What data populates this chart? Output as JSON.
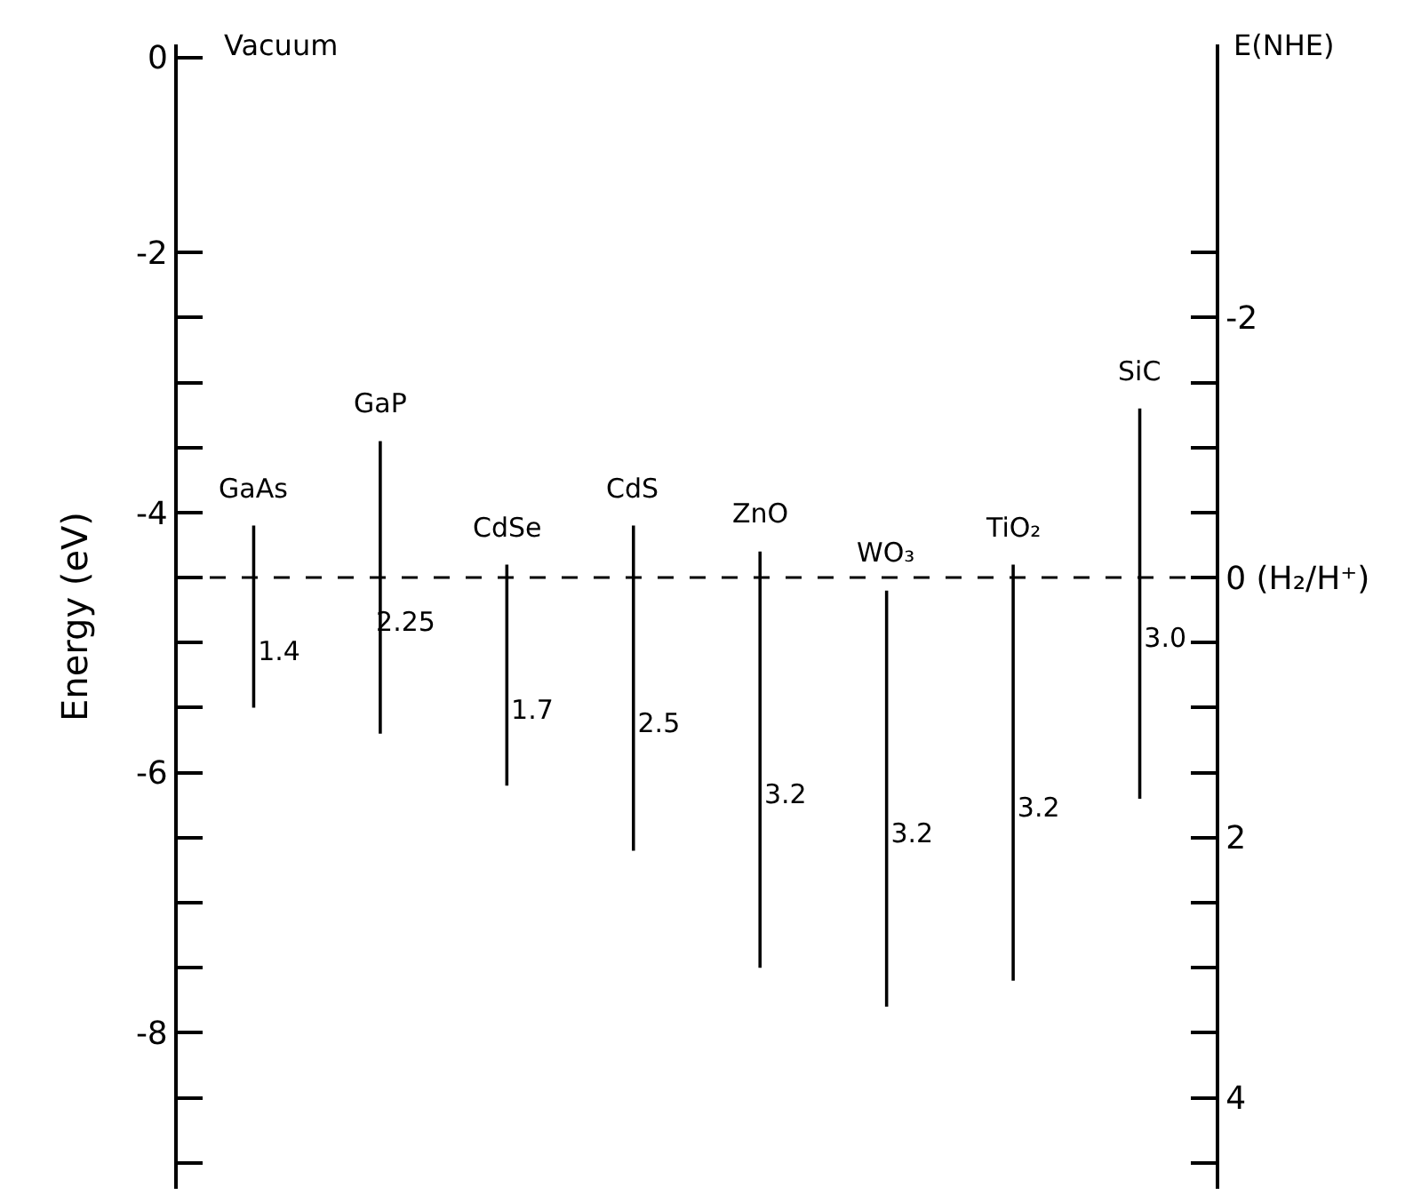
{
  "chart_data": {
    "type": "bar",
    "ylabel": "Energy (eV)",
    "y2label": "E(NHE)",
    "annotations": [
      "Vacuum"
    ],
    "categories": [
      "GaAs",
      "GaP",
      "CdSe",
      "CdS",
      "ZnO",
      "WO₃",
      "TiO₂",
      "SiC"
    ],
    "base": [
      -5.5,
      -5.7,
      -6.1,
      -6.6,
      -7.5,
      -7.8,
      -7.6,
      -6.2
    ],
    "values": [
      1.4,
      2.25,
      1.7,
      2.5,
      3.2,
      3.2,
      3.2,
      3.0
    ],
    "value_labels": [
      "1.4",
      "2.25",
      "1.7",
      "2.5",
      "3.2",
      "3.2",
      "3.2",
      "3.0"
    ],
    "color": "#000000",
    "ylim": [
      -9.2,
      -0.4
    ],
    "yticks": [
      {
        "value": -0.5,
        "label": "0"
      },
      {
        "value": -2,
        "label": "-2"
      },
      {
        "value": -2.5,
        "label": null
      },
      {
        "value": -3,
        "label": null
      },
      {
        "value": -3.5,
        "label": null
      },
      {
        "value": -4,
        "label": "-4"
      },
      {
        "value": -4.5,
        "label": null
      },
      {
        "value": -5,
        "label": null
      },
      {
        "value": -5.5,
        "label": null
      },
      {
        "value": -6,
        "label": "-6"
      },
      {
        "value": -6.5,
        "label": null
      },
      {
        "value": -7,
        "label": null
      },
      {
        "value": -7.5,
        "label": null
      },
      {
        "value": -8,
        "label": "-8"
      },
      {
        "value": -8.5,
        "label": null
      },
      {
        "value": -9,
        "label": null
      }
    ],
    "y2lim": [
      4.7,
      -4.1
    ],
    "y2ticks": [
      {
        "value": -2.5,
        "label": null
      },
      -2,
      {
        "value": -1.5,
        "label": null
      },
      {
        "value": -1,
        "label": null
      },
      {
        "value": -0.5,
        "label": null
      },
      {
        "value": 0,
        "label": "0 (H₂/H⁺)"
      },
      {
        "value": 0.5,
        "label": null
      },
      {
        "value": 1,
        "label": null
      },
      {
        "value": 1.5,
        "label": null
      },
      2,
      {
        "value": 2.5,
        "label": null
      },
      {
        "value": 3,
        "label": null
      },
      {
        "value": 3.5,
        "label": null
      },
      4,
      {
        "value": 4.5,
        "label": null
      }
    ],
    "ref_lines": [
      {
        "axis": "y",
        "value": -4.5,
        "line_style": "dashed",
        "color": "#000000"
      }
    ],
    "tick_labels": "y"
  }
}
